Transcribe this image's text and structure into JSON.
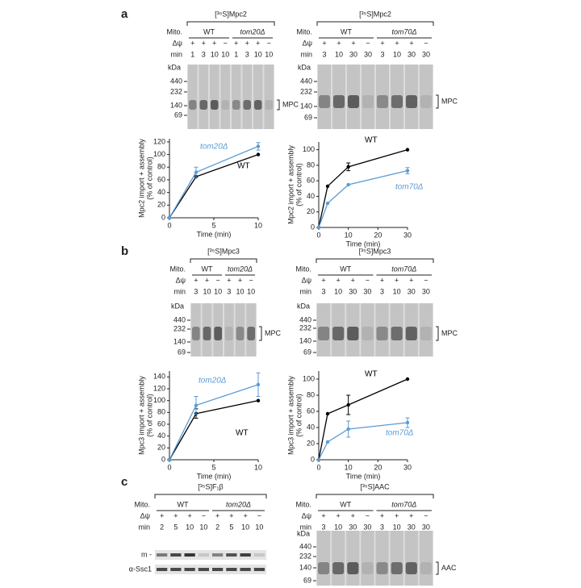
{
  "panel_labels": [
    "a",
    "b",
    "c"
  ],
  "blots": [
    {
      "title": "[³⁵S]Mpc2",
      "row_labels": [
        "Mito.",
        "Δψ",
        "min"
      ],
      "strains": [
        "WT",
        "tom20Δ"
      ],
      "dpsi": [
        "+",
        "+",
        "+",
        "−",
        "+",
        "+",
        "+",
        "−"
      ],
      "min": [
        1,
        3,
        10,
        10,
        1,
        3,
        10,
        10
      ],
      "markers_title": "kDa",
      "markers": [
        440,
        232,
        140,
        69
      ],
      "band": "MPC"
    },
    {
      "title": "[³⁵S]Mpc2",
      "row_labels": [
        "Mito.",
        "Δψ",
        "min"
      ],
      "strains": [
        "WT",
        "tom70Δ"
      ],
      "dpsi": [
        "+",
        "+",
        "+",
        "−",
        "+",
        "+",
        "+",
        "−"
      ],
      "min": [
        3,
        10,
        30,
        30,
        3,
        10,
        30,
        30
      ],
      "markers_title": "kDa",
      "markers": [
        440,
        232,
        140,
        69
      ],
      "band": "MPC"
    },
    {
      "title": "[³⁵S]Mpc3",
      "row_labels": [
        "Mito.",
        "Δψ",
        "min"
      ],
      "strains": [
        "WT",
        "tom20Δ"
      ],
      "dpsi": [
        "+",
        "+",
        "−",
        "+",
        "+",
        "−"
      ],
      "min": [
        3,
        10,
        10,
        3,
        10,
        10
      ],
      "markers_title": "kDa",
      "markers": [
        440,
        232,
        140,
        69
      ],
      "band": "MPC"
    },
    {
      "title": "[³⁵S]Mpc3",
      "row_labels": [
        "Mito.",
        "Δψ",
        "min"
      ],
      "strains": [
        "WT",
        "tom70Δ"
      ],
      "dpsi": [
        "+",
        "+",
        "+",
        "−",
        "+",
        "+",
        "+",
        "−"
      ],
      "min": [
        3,
        10,
        30,
        30,
        3,
        10,
        30,
        30
      ],
      "markers_title": "kDa",
      "markers": [
        440,
        232,
        140,
        69
      ],
      "band": "MPC"
    },
    {
      "title": "[³⁵S]F₁β",
      "row_labels": [
        "Mito.",
        "Δψ",
        "min"
      ],
      "strains": [
        "WT",
        "tom20Δ"
      ],
      "dpsi": [
        "+",
        "+",
        "+",
        "−",
        "+",
        "+",
        "+",
        "−"
      ],
      "min": [
        2,
        5,
        10,
        10,
        2,
        5,
        10,
        10
      ],
      "side_labels": [
        "m -",
        "α-Ssc1"
      ]
    },
    {
      "title": "[³⁵S]AAC",
      "row_labels": [
        "Mito.",
        "Δψ",
        "min"
      ],
      "strains": [
        "WT",
        "tom70Δ"
      ],
      "dpsi": [
        "+",
        "+",
        "+",
        "−",
        "+",
        "+",
        "+",
        "−"
      ],
      "min": [
        3,
        10,
        30,
        30,
        3,
        10,
        30,
        30
      ],
      "markers_title": "kDa",
      "markers": [
        440,
        232,
        140,
        69
      ],
      "band": "AAC"
    }
  ],
  "chart_data": [
    {
      "type": "line",
      "ylabel": [
        "Mpc2 import + assembly",
        "(% of control)"
      ],
      "xlabel": "Time (min)",
      "x": [
        0,
        3,
        10
      ],
      "xlim": [
        0,
        10
      ],
      "xticks": [
        0,
        5,
        10
      ],
      "ylim": [
        0,
        125
      ],
      "yticks": [
        0,
        20,
        40,
        60,
        80,
        100,
        120
      ],
      "series": [
        {
          "name": "WT",
          "color": "#000000",
          "values": [
            0,
            65,
            100
          ],
          "errors": [
            null,
            null,
            null
          ]
        },
        {
          "name": "tom20Δ",
          "color": "#5b9bd5",
          "values": [
            0,
            72,
            113
          ],
          "errors": [
            null,
            8,
            6
          ]
        }
      ]
    },
    {
      "type": "line",
      "ylabel": [
        "Mpc2 import + assembly",
        "(% of control)"
      ],
      "xlabel": "Time (min)",
      "x": [
        0,
        3,
        10,
        30
      ],
      "xlim": [
        0,
        30
      ],
      "xticks": [
        0,
        10,
        20,
        30
      ],
      "ylim": [
        0,
        110
      ],
      "yticks": [
        0,
        20,
        40,
        60,
        80,
        100
      ],
      "series": [
        {
          "name": "WT",
          "color": "#000000",
          "values": [
            0,
            53,
            78,
            100
          ],
          "errors": [
            null,
            null,
            5,
            null
          ]
        },
        {
          "name": "tom70Δ",
          "color": "#5b9bd5",
          "values": [
            0,
            31,
            55,
            73
          ],
          "errors": [
            null,
            null,
            null,
            4
          ]
        }
      ]
    },
    {
      "type": "line",
      "ylabel": [
        "Mpc3 import + assembly",
        "(% of control)"
      ],
      "xlabel": "Time (min)",
      "x": [
        0,
        3,
        10
      ],
      "xlim": [
        0,
        10
      ],
      "xticks": [
        0,
        5,
        10
      ],
      "ylim": [
        0,
        150
      ],
      "yticks": [
        0,
        20,
        40,
        60,
        80,
        100,
        120,
        140
      ],
      "series": [
        {
          "name": "WT",
          "color": "#000000",
          "values": [
            0,
            78,
            100
          ],
          "errors": [
            null,
            8,
            null
          ]
        },
        {
          "name": "tom20Δ",
          "color": "#5b9bd5",
          "values": [
            0,
            92,
            127
          ],
          "errors": [
            null,
            15,
            20
          ]
        }
      ]
    },
    {
      "type": "line",
      "ylabel": [
        "Mpc3 import + assembly",
        "(% of control)"
      ],
      "xlabel": "Time (min)",
      "x": [
        0,
        3,
        10,
        30
      ],
      "xlim": [
        0,
        30
      ],
      "xticks": [
        0,
        10,
        20,
        30
      ],
      "ylim": [
        0,
        110
      ],
      "yticks": [
        0,
        20,
        40,
        60,
        80,
        100
      ],
      "series": [
        {
          "name": "WT",
          "color": "#000000",
          "values": [
            0,
            57,
            68,
            100
          ],
          "errors": [
            null,
            null,
            12,
            null
          ]
        },
        {
          "name": "tom70Δ",
          "color": "#5b9bd5",
          "values": [
            0,
            22,
            38,
            46
          ],
          "errors": [
            null,
            null,
            10,
            6
          ]
        }
      ]
    }
  ]
}
